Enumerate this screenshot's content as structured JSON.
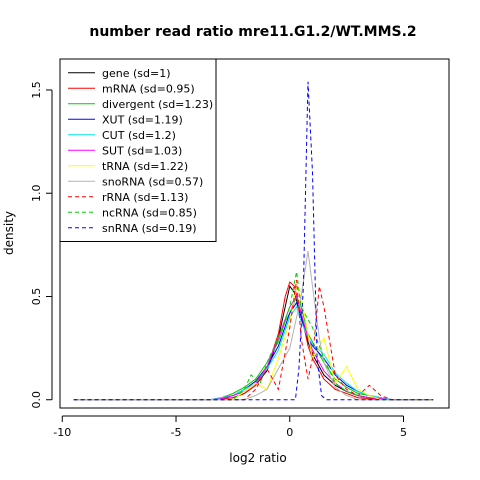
{
  "chart_data": {
    "type": "line",
    "title": "number read ratio mre11.G1.2/WT.MMS.2",
    "xlabel": "log2 ratio",
    "ylabel": "density",
    "xlim": [
      -10.1,
      7.0
    ],
    "ylim": [
      -0.04,
      1.65
    ],
    "xticks": [
      -10,
      -5,
      0,
      5
    ],
    "yticks": [
      0.0,
      0.5,
      1.0,
      1.5
    ],
    "grid": false,
    "legend_position": "top-left",
    "series": [
      {
        "name": "gene (sd=1)",
        "color": "#000000",
        "dash": "solid",
        "points": [
          [
            -9.5,
            0
          ],
          [
            -3.5,
            0
          ],
          [
            -3.0,
            0.005
          ],
          [
            -2.5,
            0.01
          ],
          [
            -2.0,
            0.03
          ],
          [
            -1.5,
            0.07
          ],
          [
            -1.0,
            0.14
          ],
          [
            -0.5,
            0.3
          ],
          [
            -0.2,
            0.45
          ],
          [
            0.0,
            0.55
          ],
          [
            0.2,
            0.52
          ],
          [
            0.5,
            0.4
          ],
          [
            0.8,
            0.28
          ],
          [
            1.0,
            0.22
          ],
          [
            1.5,
            0.12
          ],
          [
            2.0,
            0.07
          ],
          [
            2.5,
            0.04
          ],
          [
            3.0,
            0.02
          ],
          [
            3.5,
            0.01
          ],
          [
            4.0,
            0.005
          ],
          [
            4.5,
            0
          ],
          [
            6.3,
            0
          ]
        ]
      },
      {
        "name": "mRNA (sd=0.95)",
        "color": "#ff0000",
        "dash": "solid",
        "points": [
          [
            -9.5,
            0
          ],
          [
            -3.5,
            0
          ],
          [
            -3.0,
            0.005
          ],
          [
            -2.5,
            0.01
          ],
          [
            -2.0,
            0.03
          ],
          [
            -1.5,
            0.07
          ],
          [
            -1.0,
            0.15
          ],
          [
            -0.5,
            0.32
          ],
          [
            -0.2,
            0.5
          ],
          [
            0.0,
            0.57
          ],
          [
            0.2,
            0.55
          ],
          [
            0.5,
            0.42
          ],
          [
            0.8,
            0.26
          ],
          [
            1.0,
            0.2
          ],
          [
            1.5,
            0.1
          ],
          [
            2.0,
            0.05
          ],
          [
            2.5,
            0.03
          ],
          [
            3.0,
            0.01
          ],
          [
            3.5,
            0.005
          ],
          [
            4.5,
            0
          ],
          [
            6.3,
            0
          ]
        ]
      },
      {
        "name": "divergent (sd=1.23)",
        "color": "#00cd00",
        "dash": "solid",
        "points": [
          [
            -9.5,
            0
          ],
          [
            -3.5,
            0
          ],
          [
            -3.0,
            0.01
          ],
          [
            -2.5,
            0.03
          ],
          [
            -2.0,
            0.06
          ],
          [
            -1.5,
            0.1
          ],
          [
            -1.0,
            0.18
          ],
          [
            -0.5,
            0.28
          ],
          [
            -0.2,
            0.38
          ],
          [
            0.0,
            0.42
          ],
          [
            0.3,
            0.5
          ],
          [
            0.5,
            0.45
          ],
          [
            0.8,
            0.32
          ],
          [
            1.0,
            0.28
          ],
          [
            1.5,
            0.18
          ],
          [
            2.0,
            0.1
          ],
          [
            2.5,
            0.06
          ],
          [
            3.0,
            0.03
          ],
          [
            3.5,
            0.02
          ],
          [
            4.0,
            0.01
          ],
          [
            4.5,
            0
          ],
          [
            6.3,
            0
          ]
        ]
      },
      {
        "name": "XUT (sd=1.19)",
        "color": "#0000ff",
        "dash": "solid",
        "points": [
          [
            -9.5,
            0
          ],
          [
            -3.5,
            0
          ],
          [
            -3.0,
            0.01
          ],
          [
            -2.5,
            0.02
          ],
          [
            -2.0,
            0.05
          ],
          [
            -1.5,
            0.09
          ],
          [
            -1.0,
            0.16
          ],
          [
            -0.5,
            0.26
          ],
          [
            0.0,
            0.42
          ],
          [
            0.3,
            0.47
          ],
          [
            0.5,
            0.4
          ],
          [
            0.8,
            0.3
          ],
          [
            1.0,
            0.26
          ],
          [
            1.5,
            0.2
          ],
          [
            2.0,
            0.12
          ],
          [
            2.5,
            0.07
          ],
          [
            3.0,
            0.04
          ],
          [
            3.5,
            0.02
          ],
          [
            4.0,
            0.01
          ],
          [
            4.5,
            0
          ],
          [
            6.3,
            0
          ]
        ]
      },
      {
        "name": "CUT (sd=1.2)",
        "color": "#00e5ee",
        "dash": "solid",
        "points": [
          [
            -9.5,
            0
          ],
          [
            -3.5,
            0
          ],
          [
            -3.0,
            0.01
          ],
          [
            -2.5,
            0.02
          ],
          [
            -2.0,
            0.05
          ],
          [
            -1.5,
            0.08
          ],
          [
            -1.0,
            0.15
          ],
          [
            -0.5,
            0.24
          ],
          [
            0.0,
            0.4
          ],
          [
            0.3,
            0.45
          ],
          [
            0.5,
            0.38
          ],
          [
            0.8,
            0.3
          ],
          [
            1.0,
            0.27
          ],
          [
            1.5,
            0.22
          ],
          [
            2.0,
            0.13
          ],
          [
            2.5,
            0.08
          ],
          [
            3.0,
            0.04
          ],
          [
            3.5,
            0.02
          ],
          [
            4.0,
            0.01
          ],
          [
            4.5,
            0
          ],
          [
            6.3,
            0
          ]
        ]
      },
      {
        "name": "SUT (sd=1.03)",
        "color": "#ff00ff",
        "dash": "solid",
        "points": [
          [
            -9.5,
            0
          ],
          [
            -3.5,
            0
          ],
          [
            -3.0,
            0.005
          ],
          [
            -2.5,
            0.02
          ],
          [
            -2.0,
            0.04
          ],
          [
            -1.5,
            0.08
          ],
          [
            -1.0,
            0.16
          ],
          [
            -0.5,
            0.3
          ],
          [
            0.0,
            0.45
          ],
          [
            0.3,
            0.5
          ],
          [
            0.5,
            0.42
          ],
          [
            0.8,
            0.3
          ],
          [
            1.0,
            0.24
          ],
          [
            1.5,
            0.14
          ],
          [
            2.0,
            0.08
          ],
          [
            2.5,
            0.04
          ],
          [
            3.0,
            0.02
          ],
          [
            3.5,
            0.01
          ],
          [
            4.5,
            0
          ],
          [
            6.3,
            0
          ]
        ]
      },
      {
        "name": "tRNA (sd=1.22)",
        "color": "#ffff00",
        "dash": "solid",
        "points": [
          [
            -9.5,
            0
          ],
          [
            -2.5,
            0
          ],
          [
            -2.0,
            0.04
          ],
          [
            -1.5,
            0.08
          ],
          [
            -1.0,
            0.05
          ],
          [
            -0.5,
            0.2
          ],
          [
            0.0,
            0.38
          ],
          [
            0.3,
            0.55
          ],
          [
            0.5,
            0.5
          ],
          [
            1.0,
            0.2
          ],
          [
            1.5,
            0.3
          ],
          [
            2.0,
            0.08
          ],
          [
            2.5,
            0.16
          ],
          [
            3.0,
            0.05
          ],
          [
            3.5,
            0.02
          ],
          [
            4.0,
            0
          ],
          [
            6.3,
            0
          ]
        ]
      },
      {
        "name": "snoRNA (sd=0.57)",
        "color": "#b3b3b3",
        "dash": "solid",
        "points": [
          [
            -9.5,
            0
          ],
          [
            -2.0,
            0
          ],
          [
            -1.5,
            0.02
          ],
          [
            -1.0,
            0.05
          ],
          [
            -0.5,
            0.15
          ],
          [
            0.0,
            0.25
          ],
          [
            0.3,
            0.4
          ],
          [
            0.5,
            0.5
          ],
          [
            0.8,
            0.72
          ],
          [
            1.0,
            0.55
          ],
          [
            1.3,
            0.3
          ],
          [
            1.5,
            0.18
          ],
          [
            2.0,
            0.06
          ],
          [
            2.5,
            0.02
          ],
          [
            3.0,
            0
          ],
          [
            6.3,
            0
          ]
        ]
      },
      {
        "name": "rRNA (sd=1.13)",
        "color": "#ff0000",
        "dash": "dashed",
        "points": [
          [
            -9.5,
            0
          ],
          [
            -2.0,
            0
          ],
          [
            -1.5,
            0.05
          ],
          [
            -1.0,
            0.15
          ],
          [
            -0.5,
            0.05
          ],
          [
            0.0,
            0.35
          ],
          [
            0.3,
            0.58
          ],
          [
            0.5,
            0.3
          ],
          [
            0.8,
            0.1
          ],
          [
            1.0,
            0.2
          ],
          [
            1.3,
            0.55
          ],
          [
            1.5,
            0.45
          ],
          [
            2.0,
            0.12
          ],
          [
            2.5,
            0.05
          ],
          [
            3.0,
            0.02
          ],
          [
            3.5,
            0.07
          ],
          [
            4.0,
            0.02
          ],
          [
            4.5,
            0
          ],
          [
            6.3,
            0
          ]
        ]
      },
      {
        "name": "ncRNA (sd=0.85)",
        "color": "#00cd00",
        "dash": "dashed",
        "points": [
          [
            -9.5,
            0
          ],
          [
            -2.5,
            0
          ],
          [
            -2.0,
            0.05
          ],
          [
            -1.7,
            0.12
          ],
          [
            -1.3,
            0.08
          ],
          [
            -1.0,
            0.18
          ],
          [
            -0.5,
            0.3
          ],
          [
            0.0,
            0.45
          ],
          [
            0.3,
            0.62
          ],
          [
            0.5,
            0.45
          ],
          [
            1.0,
            0.35
          ],
          [
            1.5,
            0.2
          ],
          [
            2.0,
            0.08
          ],
          [
            2.5,
            0.04
          ],
          [
            3.0,
            0.02
          ],
          [
            3.5,
            0
          ],
          [
            6.3,
            0
          ]
        ]
      },
      {
        "name": "snRNA (sd=0.19)",
        "color": "#0000ff",
        "dash": "dashed",
        "points": [
          [
            -9.5,
            0
          ],
          [
            0.25,
            0
          ],
          [
            0.4,
            0.15
          ],
          [
            0.6,
            0.55
          ],
          [
            0.8,
            1.54
          ],
          [
            1.0,
            1.1
          ],
          [
            1.2,
            0.2
          ],
          [
            1.4,
            0.02
          ],
          [
            1.6,
            0
          ],
          [
            6.3,
            0
          ]
        ]
      }
    ]
  }
}
